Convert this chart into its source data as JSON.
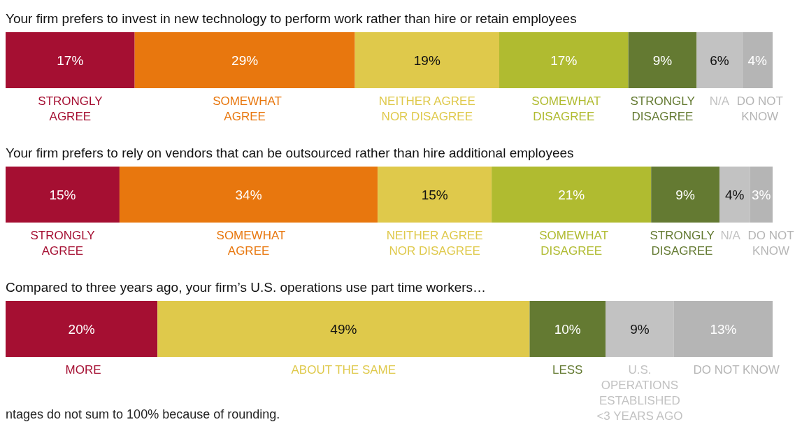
{
  "chart_data": [
    {
      "type": "bar",
      "orientation": "horizontal",
      "stacked": true,
      "title": "Your firm prefers to invest in new technology to perform work rather than hire or retain employees",
      "categories": [
        null
      ],
      "series": [
        {
          "name": "STRONGLY AGREE",
          "color": "#a50f32",
          "values": [
            17
          ],
          "value_labels": [
            "17%"
          ]
        },
        {
          "name": "SOMEWHAT AGREE",
          "color": "#e8770e",
          "values": [
            29
          ],
          "value_labels": [
            "29%"
          ]
        },
        {
          "name": "NEITHER AGREE NOR DISAGREE",
          "color": "#dfc94b",
          "values": [
            19
          ],
          "value_labels": [
            "19%"
          ]
        },
        {
          "name": "SOMEWHAT DISAGREE",
          "color": "#b0bb30",
          "values": [
            17
          ],
          "value_labels": [
            "17%"
          ]
        },
        {
          "name": "STRONGLY DISAGREE",
          "color": "#647a32",
          "values": [
            9
          ],
          "value_labels": [
            "9%"
          ]
        },
        {
          "name": "N/A",
          "color": "#c2c2c2",
          "values": [
            6
          ],
          "value_labels": [
            "6%"
          ]
        },
        {
          "name": "DO NOT KNOW",
          "color": "#b5b5b5",
          "values": [
            4
          ],
          "value_labels": [
            "4%"
          ]
        }
      ]
    },
    {
      "type": "bar",
      "orientation": "horizontal",
      "stacked": true,
      "title": "Your firm prefers to rely on vendors that can be outsourced rather than hire additional employees",
      "categories": [
        null
      ],
      "series": [
        {
          "name": "STRONGLY AGREE",
          "color": "#a50f32",
          "values": [
            15
          ],
          "value_labels": [
            "15%"
          ]
        },
        {
          "name": "SOMEWHAT AGREE",
          "color": "#e8770e",
          "values": [
            34
          ],
          "value_labels": [
            "34%"
          ]
        },
        {
          "name": "NEITHER AGREE NOR DISAGREE",
          "color": "#dfc94b",
          "values": [
            15
          ],
          "value_labels": [
            "15%"
          ]
        },
        {
          "name": "SOMEWHAT DISAGREE",
          "color": "#b0bb30",
          "values": [
            21
          ],
          "value_labels": [
            "21%"
          ]
        },
        {
          "name": "STRONGLY DISAGREE",
          "color": "#647a32",
          "values": [
            9
          ],
          "value_labels": [
            "9%"
          ]
        },
        {
          "name": "N/A",
          "color": "#c2c2c2",
          "values": [
            4
          ],
          "value_labels": [
            "4%"
          ]
        },
        {
          "name": "DO NOT KNOW",
          "color": "#b5b5b5",
          "values": [
            3
          ],
          "value_labels": [
            "3%"
          ]
        }
      ]
    },
    {
      "type": "bar",
      "orientation": "horizontal",
      "stacked": true,
      "title": "Compared to three years ago, your firm’s U.S. operations use part time workers…",
      "categories": [
        null
      ],
      "annotations": [
        "ntages do not sum to 100% because of rounding."
      ],
      "series": [
        {
          "name": "MORE",
          "color": "#a50f32",
          "values": [
            20
          ],
          "value_labels": [
            "20%"
          ]
        },
        {
          "name": "ABOUT THE SAME",
          "color": "#dfc94b",
          "values": [
            49
          ],
          "value_labels": [
            "49%"
          ]
        },
        {
          "name": "LESS",
          "color": "#647a32",
          "values": [
            10
          ],
          "value_labels": [
            "10%"
          ]
        },
        {
          "name": "U.S. OPERATIONS ESTABLISHED <3 YEARS AGO",
          "color": "#c2c2c2",
          "values": [
            9
          ],
          "value_labels": [
            "9%"
          ]
        },
        {
          "name": "DO NOT KNOW",
          "color": "#b5b5b5",
          "values": [
            13
          ],
          "value_labels": [
            "13%"
          ]
        }
      ]
    }
  ]
}
